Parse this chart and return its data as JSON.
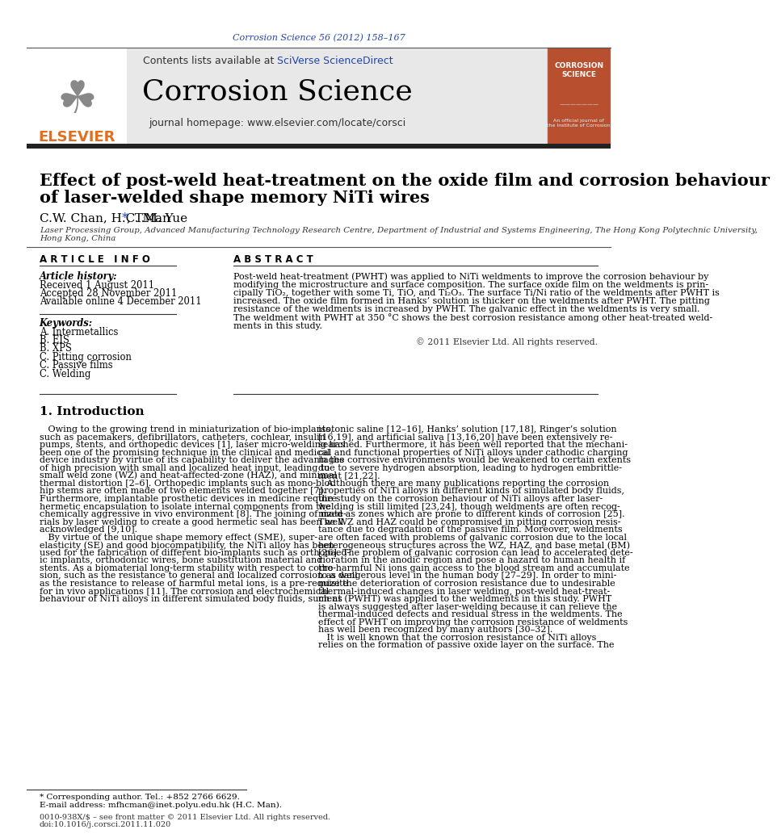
{
  "journal_ref": "Corrosion Science 56 (2012) 158–167",
  "journal_ref_color": "#2244aa",
  "header_bg": "#e8e8e8",
  "contents_text": "Contents lists available at ",
  "sciverse_text": "SciVerse ScienceDirect",
  "sciverse_color": "#2244aa",
  "journal_name": "Corrosion Science",
  "journal_homepage": "journal homepage: www.elsevier.com/locate/corsci",
  "title_line1": "Effect of post-weld heat-treatment on the oxide film and corrosion behaviour",
  "title_line2": "of laser-welded shape memory NiTi wires",
  "authors": "C.W. Chan, H.C. Man",
  "authors_star": "*",
  "authors_end": ", T.M. Yue",
  "affiliation_line1": "Laser Processing Group, Advanced Manufacturing Technology Research Centre, Department of Industrial and Systems Engineering, The Hong Kong Polytechnic University,",
  "affiliation_line2": "Hong Kong, China",
  "article_info_header": "A R T I C L E   I N F O",
  "abstract_header": "A B S T R A C T",
  "article_history_label": "Article history:",
  "received": "Received 1 August 2011",
  "accepted": "Accepted 28 November 2011",
  "available": "Available online 4 December 2011",
  "keywords_label": "Keywords:",
  "keywords": [
    "A. Intermetallics",
    "B. EIS",
    "B. XPS",
    "C. Pitting corrosion",
    "C. Passive films",
    "C. Welding"
  ],
  "abstract_lines": [
    "Post-weld heat-treatment (PWHT) was applied to NiTi weldments to improve the corrosion behaviour by",
    "modifying the microstructure and surface composition. The surface oxide film on the weldments is prin-",
    "cipally TiO₂, together with some Ti, TiO, and Ti₂O₃. The surface Ti/Ni ratio of the weldments after PWHT is",
    "increased. The oxide film formed in Hanks’ solution is thicker on the weldments after PWHT. The pitting",
    "resistance of the weldments is increased by PWHT. The galvanic effect in the weldments is very small.",
    "The weldment with PWHT at 350 °C shows the best corrosion resistance among other heat-treated weld-",
    "ments in this study."
  ],
  "copyright": "© 2011 Elsevier Ltd. All rights reserved.",
  "intro_header": "1. Introduction",
  "intro_col1_lines": [
    "   Owing to the growing trend in miniaturization of bio-implants,",
    "such as pacemakers, defibrillators, catheters, cochlear, insulin",
    "pumps, stents, and orthopedic devices [1], laser micro-welding has",
    "been one of the promising technique in the clinical and medical",
    "device industry by virtue of its capability to deliver the advantages",
    "of high precision with small and localized heat input, leading to",
    "small weld zone (WZ) and heat-affected-zone (HAZ), and minimal",
    "thermal distortion [2–6]. Orthopedic implants such as mono-bloc",
    "hip stems are often made of two elements welded together [7].",
    "Furthermore, implantable prosthetic devices in medicine require",
    "hermetic encapsulation to isolate internal components from the",
    "chemically aggressive in vivo environment [8]. The joining of mate-",
    "rials by laser welding to create a good hermetic seal has been well",
    "acknowledged [9,10].",
    "   By virtue of the unique shape memory effect (SME), super-",
    "elasticity (SE) and good biocompatibility, the NiTi alloy has been",
    "used for the fabrication of different bio-implants such as orthopaed-",
    "ic implants, orthodontic wires, bone substitution material and",
    "stents. As a biomaterial long-term stability with respect to corro-",
    "sion, such as the resistance to general and localized corrosion as well",
    "as the resistance to release of harmful metal ions, is a pre-requisite",
    "for in vivo applications [11]. The corrosion and electrochemical",
    "behaviour of NiTi alloys in different simulated body fluids, such as"
  ],
  "intro_col2_lines": [
    "isotonic saline [12–16], Hanks’ solution [17,18], Ringer’s solution",
    "[16,19], and artificial saliva [13,16,20] have been extensively re-",
    "searched. Furthermore, it has been well reported that the mechani-",
    "cal and functional properties of NiTi alloys under cathodic charging",
    "in the corrosive environments would be weakened to certain extents",
    "due to severe hydrogen absorption, leading to hydrogen embrittle-",
    "ment [21,22].",
    "   Although there are many publications reporting the corrosion",
    "properties of NiTi alloys in different kinds of simulated body fluids,",
    "the study on the corrosion behaviour of NiTi alloys after laser-",
    "welding is still limited [23,24], though weldments are often recog-",
    "nized as zones which are prone to different kinds of corrosion [25].",
    "The WZ and HAZ could be compromised in pitting corrosion resis-",
    "tance due to degradation of the passive film. Moreover, weldments",
    "are often faced with problems of galvanic corrosion due to the local",
    "heterogeneous structures across the WZ, HAZ, and base metal (BM)",
    "[26]. The problem of galvanic corrosion can lead to accelerated dete-",
    "rioration in the anodic region and pose a hazard to human health if",
    "the harmful Ni ions gain access to the blood stream and accumulate",
    "to a dangerous level in the human body [27–29]. In order to mini-",
    "mize the deterioration of corrosion resistance due to undesirable",
    "thermal-induced changes in laser welding, post-weld heat-treat-",
    "ment (PWHT) was applied to the weldments in this study. PWHT",
    "is always suggested after laser-welding because it can relieve the",
    "thermal-induced defects and residual stress in the weldments. The",
    "effect of PWHT on improving the corrosion resistance of weldments",
    "has well been recognized by many authors [30–32].",
    "   It is well known that the corrosion resistance of NiTi alloys",
    "relies on the formation of passive oxide layer on the surface. The"
  ],
  "footnote_star": "* Corresponding author. Tel.: +852 2766 6629.",
  "footnote_email": "E-mail address: mfhcman@inet.polyu.edu.hk (H.C. Man).",
  "footer_issn": "0010-938X/$ – see front matter © 2011 Elsevier Ltd. All rights reserved.",
  "footer_doi": "doi:10.1016/j.corsci.2011.11.020",
  "background_color": "#ffffff",
  "text_color": "#000000",
  "thick_bar_color": "#222222",
  "elsevier_orange": "#e07020",
  "link_blue": "#2244bb"
}
